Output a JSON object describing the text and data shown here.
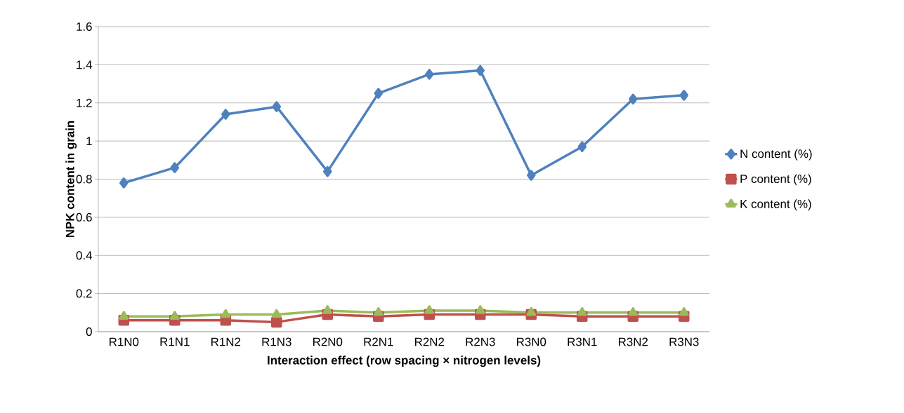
{
  "chart_data": {
    "type": "line",
    "xlabel": "Interaction effect (row spacing × nitrogen levels)",
    "ylabel": "NPK content  in grain",
    "categories": [
      "R1N0",
      "R1N1",
      "R1N2",
      "R1N3",
      "R2N0",
      "R2N1",
      "R2N2",
      "R2N3",
      "R3N0",
      "R3N1",
      "R3N2",
      "R3N3"
    ],
    "series": [
      {
        "name": "N content (%)",
        "color": "#4f81bd",
        "marker": "diamond",
        "values": [
          0.78,
          0.86,
          1.14,
          1.18,
          0.84,
          1.25,
          1.35,
          1.37,
          0.82,
          0.97,
          1.22,
          1.24
        ]
      },
      {
        "name": "P content (%)",
        "color": "#c0504d",
        "marker": "square",
        "values": [
          0.06,
          0.06,
          0.06,
          0.05,
          0.09,
          0.08,
          0.09,
          0.09,
          0.09,
          0.08,
          0.08,
          0.08
        ]
      },
      {
        "name": "K content (%)",
        "color": "#9bbb59",
        "marker": "triangle",
        "values": [
          0.08,
          0.08,
          0.09,
          0.09,
          0.11,
          0.1,
          0.11,
          0.11,
          0.1,
          0.1,
          0.1,
          0.1
        ]
      }
    ],
    "ylim": [
      0,
      1.6
    ],
    "yticks": [
      0,
      0.2,
      0.4,
      0.6,
      0.8,
      1,
      1.2,
      1.4,
      1.6
    ],
    "grid": "y",
    "legend": "right",
    "line_style": "solid"
  }
}
